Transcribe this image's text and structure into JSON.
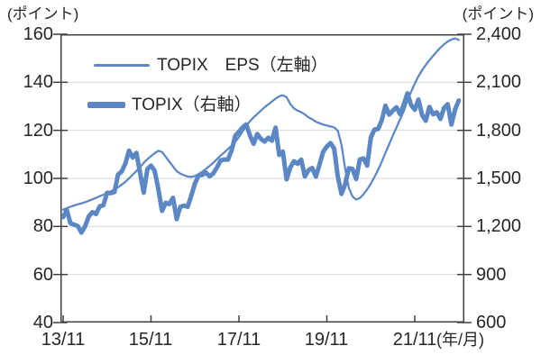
{
  "accent_color": "#5B87C5",
  "grid_color": "#D9D9D9",
  "axis_color": "#404040",
  "text_color": "#262626",
  "x_axis_unit": "(年/月)",
  "chart_data": {
    "type": "line",
    "title": "",
    "x_start": "2013/11",
    "x_interval": "monthly",
    "x_tick_labels": [
      "13/11",
      "15/11",
      "17/11",
      "19/11",
      "21/11"
    ],
    "x_tick_month_indices": [
      0,
      24,
      48,
      72,
      96
    ],
    "legend_position": "top-left-inside",
    "grid": "horizontal",
    "left_axis": {
      "unit": "(ポイント)",
      "min": 40,
      "max": 160,
      "tick_step": 20,
      "tick_labels": [
        "160",
        "140",
        "120",
        "100",
        "80",
        "60",
        "40"
      ]
    },
    "right_axis": {
      "unit": "(ポイント)",
      "min": 600,
      "max": 2400,
      "tick_step": 300,
      "tick_labels": [
        "2,400",
        "2,100",
        "1,800",
        "1,500",
        "1,200",
        "900",
        "600"
      ]
    },
    "series": [
      {
        "name": "TOPIX　EPS（左軸）",
        "axis": "left",
        "line": "thin",
        "values": [
          87.0,
          87.6,
          88.2,
          88.7,
          89.2,
          89.6,
          90.1,
          90.7,
          91.3,
          91.9,
          92.6,
          93.2,
          93.9,
          94.6,
          95.4,
          96.3,
          97.4,
          98.6,
          100.0,
          101.5,
          103.1,
          104.7,
          106.5,
          108.0,
          109.3,
          110.5,
          111.5,
          111.0,
          109.0,
          107.0,
          105.0,
          103.0,
          102.0,
          101.3,
          100.8,
          100.6,
          101.0,
          101.8,
          102.8,
          104.0,
          105.2,
          106.5,
          108.0,
          109.5,
          110.8,
          112.2,
          113.6,
          115.2,
          117.2,
          119.6,
          121.8,
          123.8,
          125.4,
          126.8,
          128.2,
          129.6,
          130.8,
          132.0,
          133.2,
          134.2,
          134.6,
          133.8,
          131.0,
          129.2,
          128.2,
          127.6,
          126.6,
          125.4,
          124.6,
          123.6,
          123.0,
          122.4,
          122.0,
          121.6,
          121.2,
          119.8,
          114.0,
          104.0,
          96.0,
          92.5,
          91.2,
          91.8,
          93.4,
          95.4,
          97.8,
          100.6,
          103.6,
          107.0,
          110.6,
          114.2,
          117.8,
          121.2,
          124.6,
          128.0,
          132.5,
          136.0,
          139.5,
          142.5,
          145.0,
          147.2,
          149.2,
          151.0,
          152.8,
          154.4,
          155.8,
          157.0,
          157.8,
          158.3,
          157.6
        ]
      },
      {
        "name": "TOPIX（右軸）",
        "axis": "right",
        "line": "thick",
        "values": [
          1258,
          1302,
          1220,
          1211,
          1203,
          1162,
          1201,
          1263,
          1289,
          1278,
          1326,
          1333,
          1410,
          1408,
          1415,
          1524,
          1543,
          1593,
          1673,
          1630,
          1659,
          1537,
          1411,
          1558,
          1580,
          1547,
          1432,
          1297,
          1347,
          1340,
          1379,
          1246,
          1323,
          1330,
          1323,
          1393,
          1469,
          1519,
          1522,
          1536,
          1513,
          1531,
          1568,
          1612,
          1618,
          1617,
          1675,
          1766,
          1792,
          1818,
          1837,
          1768,
          1716,
          1777,
          1747,
          1730,
          1753,
          1735,
          1817,
          1646,
          1667,
          1494,
          1567,
          1607,
          1591,
          1617,
          1512,
          1551,
          1565,
          1511,
          1587,
          1667,
          1699,
          1721,
          1685,
          1510,
          1403,
          1464,
          1563,
          1559,
          1496,
          1618,
          1625,
          1580,
          1755,
          1805,
          1808,
          1864,
          1954,
          1898,
          1923,
          1944,
          1901,
          1961,
          2031,
          1958,
          1929,
          1992,
          1896,
          1860,
          1946,
          1900,
          1913,
          1871,
          1940,
          1963,
          1836,
          1929,
          1986
        ]
      }
    ]
  }
}
